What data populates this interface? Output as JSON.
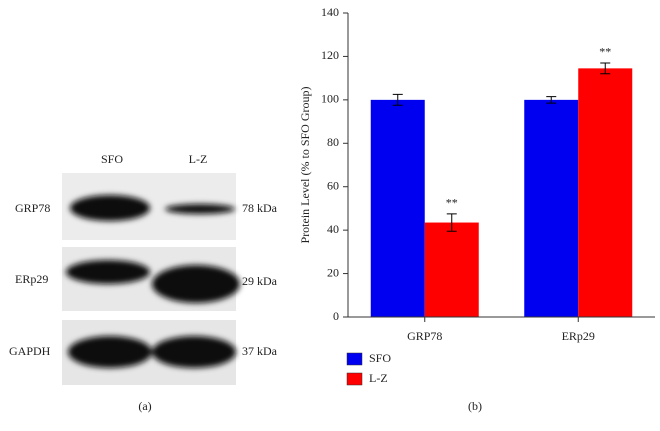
{
  "blot": {
    "lanes": [
      "SFO",
      "L-Z"
    ],
    "rows": [
      {
        "name": "GRP78",
        "size": "78 kDa"
      },
      {
        "name": "ERp29",
        "size": "29 kDa"
      },
      {
        "name": "GAPDH",
        "size": "37 kDa"
      }
    ],
    "caption": "(a)"
  },
  "chart_data": {
    "type": "bar",
    "caption": "(b)",
    "y_label": "Protein Level (% to SFO Group)",
    "categories": [
      "GRP78",
      "ERp29"
    ],
    "series": [
      {
        "name": "SFO",
        "color": "#0000f0",
        "values": [
          100,
          100
        ],
        "errors": [
          2.5,
          1.5
        ]
      },
      {
        "name": "L-Z",
        "color": "#ff0000",
        "values": [
          43.5,
          114.5
        ],
        "errors": [
          4,
          2.5
        ],
        "annotations": [
          "**",
          "**"
        ]
      }
    ],
    "ylim": [
      0,
      140
    ],
    "yticks": [
      0,
      20,
      40,
      60,
      80,
      100,
      120,
      140
    ],
    "legend": "bottom-left"
  }
}
